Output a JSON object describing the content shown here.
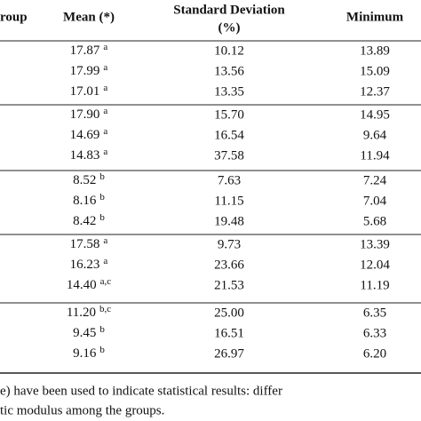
{
  "table": {
    "header": [
      "roup",
      "Mean (*)",
      "Standard Deviation",
      "(%)",
      "Minimum"
    ],
    "groups": [
      {
        "rows": [
          {
            "mean": "17.87",
            "sup": "a",
            "sd": "10.12",
            "min": "13.89"
          },
          {
            "mean": "17.99",
            "sup": "a",
            "sd": "13.56",
            "min": "15.09"
          },
          {
            "mean": "17.01",
            "sup": "a",
            "sd": "13.35",
            "min": "12.37"
          }
        ]
      },
      {
        "rows": [
          {
            "mean": "17.90",
            "sup": "a",
            "sd": "15.70",
            "min": "14.95"
          },
          {
            "mean": "14.69",
            "sup": "a",
            "sd": "16.54",
            "min": "9.64"
          },
          {
            "mean": "14.83",
            "sup": "a",
            "sd": "37.58",
            "min": "11.94"
          }
        ]
      },
      {
        "rows": [
          {
            "mean": "8.52",
            "sup": "b",
            "sd": "7.63",
            "min": "7.24"
          },
          {
            "mean": "8.16",
            "sup": "b",
            "sd": "11.15",
            "min": "7.04"
          },
          {
            "mean": "8.42",
            "sup": "b",
            "sd": "19.48",
            "min": "5.68"
          }
        ]
      },
      {
        "rows": [
          {
            "mean": "17.58",
            "sup": "a",
            "sd": "9.73",
            "min": "13.39"
          },
          {
            "mean": "16.23",
            "sup": "a",
            "sd": "23.66",
            "min": "12.04"
          },
          {
            "mean": "14.40",
            "sup": "a,c",
            "sd": "21.53",
            "min": "11.19"
          }
        ]
      },
      {
        "rows": [
          {
            "mean": "11.20",
            "sup": "b,c",
            "sd": "25.00",
            "min": "6.35"
          },
          {
            "mean": "9.45",
            "sup": "b",
            "sd": "16.51",
            "min": "6.33"
          },
          {
            "mean": "9.16",
            "sup": "b",
            "sd": "26.97",
            "min": "6.20"
          }
        ]
      }
    ]
  },
  "footnote": [
    "e) have been used to indicate statistical results: differ",
    "tic modulus among the groups."
  ]
}
